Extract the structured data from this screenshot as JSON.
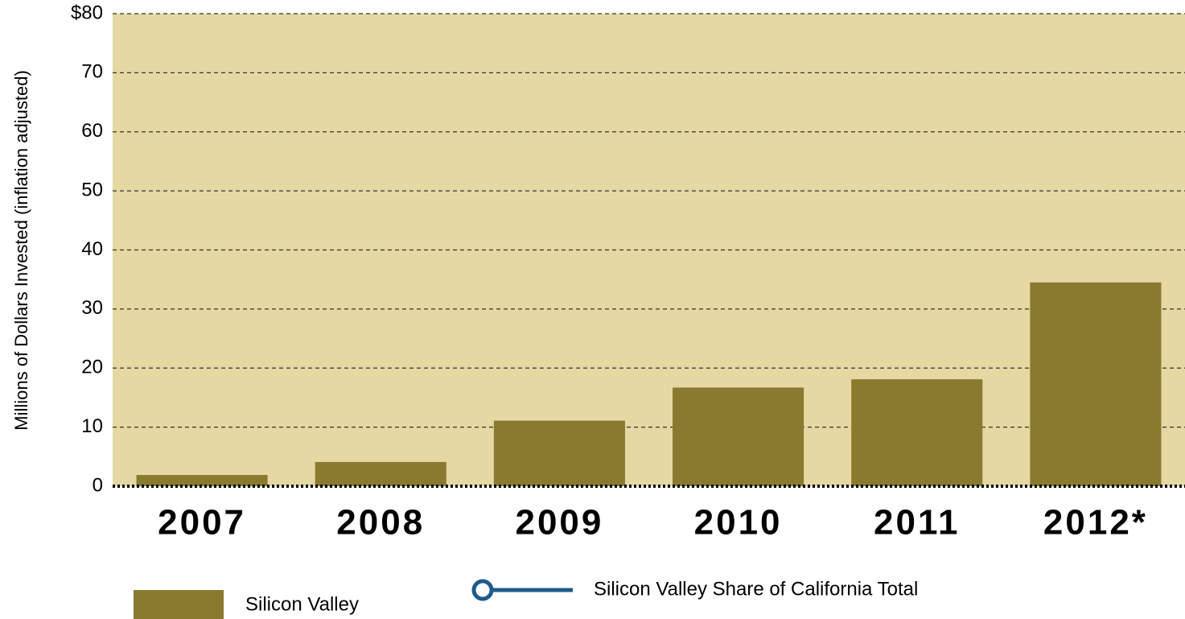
{
  "chart_data": {
    "type": "bar",
    "y_axis_label": "Millions of Dollars Invested (inflation adjusted)",
    "categories": [
      "2007",
      "2008",
      "2009",
      "2010",
      "2011",
      "2012*"
    ],
    "series": [
      {
        "name": "Silicon Valley",
        "color": "#8a7a30",
        "values": [
          1.9,
          4.1,
          11.1,
          16.7,
          18.1,
          34.5
        ]
      }
    ],
    "line_legend": {
      "name": "Silicon Valley Share of California Total",
      "color": "#1d5b8c"
    },
    "ylim": [
      0,
      80
    ],
    "yticks": [
      0,
      10,
      20,
      30,
      40,
      50,
      60,
      70,
      {
        "value": 80,
        "label": "$80"
      }
    ],
    "grid": true,
    "background": "#e6d8a3"
  }
}
